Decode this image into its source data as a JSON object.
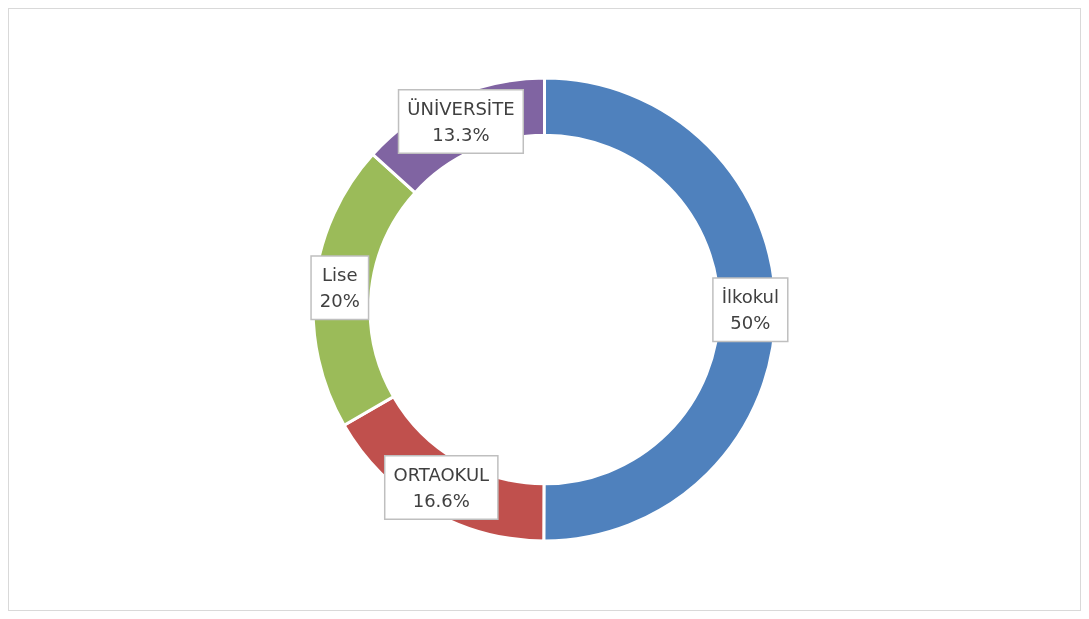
{
  "chart_data": {
    "type": "donut",
    "categories": [
      "İlkokul",
      "ORTAOKUL",
      "Lise",
      "ÜNİVERSİTE"
    ],
    "values": [
      50,
      16.6,
      20,
      13.3
    ],
    "colors": [
      "#4f81bd",
      "#c0504d",
      "#9bbb59",
      "#8064a2"
    ],
    "value_labels": [
      "50%",
      "16.6%",
      "20%",
      "13.3%"
    ]
  }
}
